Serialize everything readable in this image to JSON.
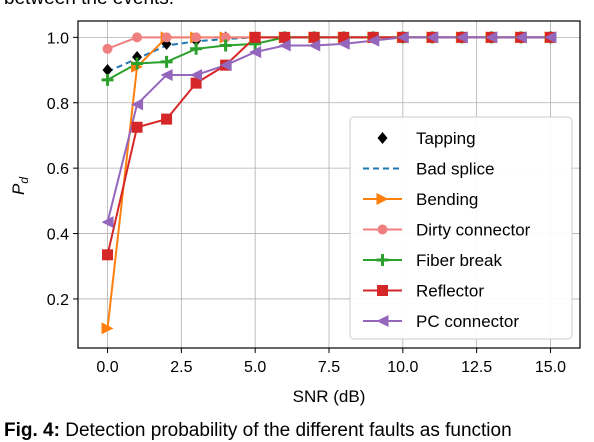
{
  "top_text": "between the events.",
  "caption": {
    "label": "Fig. 4:",
    "text": "Detection probability of the different faults as function"
  },
  "chart_data": {
    "type": "line",
    "xlabel": "SNR (dB)",
    "ylabel_main": "P",
    "ylabel_sub": "d",
    "xlim": [
      -1,
      16
    ],
    "ylim": [
      0.05,
      1.05
    ],
    "xticks": [
      0.0,
      2.5,
      5.0,
      7.5,
      10.0,
      12.5,
      15.0
    ],
    "xtick_labels": [
      "0.0",
      "2.5",
      "5.0",
      "7.5",
      "10.0",
      "12.5",
      "15.0"
    ],
    "yticks": [
      0.2,
      0.4,
      0.6,
      0.8,
      1.0
    ],
    "ytick_labels": [
      "0.2",
      "0.4",
      "0.6",
      "0.8",
      "1.0"
    ],
    "grid": true,
    "legend_position": "bottom-right",
    "x": [
      0,
      1,
      2,
      3,
      4,
      5,
      6,
      7,
      8,
      9,
      10,
      11,
      12,
      13,
      14,
      15
    ],
    "series": [
      {
        "name": "Tapping",
        "color": "#000000",
        "marker": "diamond",
        "linestyle": "none",
        "values": [
          0.9,
          0.94,
          0.98,
          0.99,
          1.0,
          1.0,
          1.0,
          1.0,
          1.0,
          1.0,
          1.0,
          1.0,
          1.0,
          1.0,
          1.0,
          1.0
        ]
      },
      {
        "name": "Bad splice",
        "color": "#1f77b4",
        "marker": "none",
        "linestyle": "dashed",
        "values": [
          0.895,
          0.935,
          0.975,
          0.988,
          0.995,
          1.0,
          1.0,
          1.0,
          1.0,
          1.0,
          1.0,
          1.0,
          1.0,
          1.0,
          1.0,
          1.0
        ]
      },
      {
        "name": "Bending",
        "color": "#ff7f0e",
        "marker": "triangle-right",
        "linestyle": "solid",
        "values": [
          0.11,
          0.91,
          1.0,
          1.0,
          1.0,
          1.0,
          1.0,
          1.0,
          1.0,
          1.0,
          1.0,
          1.0,
          1.0,
          1.0,
          1.0,
          1.0
        ]
      },
      {
        "name": "Dirty connector",
        "color": "#f08080",
        "marker": "circle",
        "linestyle": "solid",
        "values": [
          0.965,
          1.0,
          1.0,
          1.0,
          1.0,
          1.0,
          1.0,
          1.0,
          1.0,
          1.0,
          1.0,
          1.0,
          1.0,
          1.0,
          1.0,
          1.0
        ]
      },
      {
        "name": "Fiber break",
        "color": "#2ca02c",
        "marker": "plus",
        "linestyle": "solid",
        "values": [
          0.87,
          0.92,
          0.925,
          0.965,
          0.975,
          0.98,
          1.0,
          1.0,
          1.0,
          1.0,
          1.0,
          1.0,
          1.0,
          1.0,
          1.0,
          1.0
        ]
      },
      {
        "name": "Reflector",
        "color": "#d62728",
        "marker": "square",
        "linestyle": "solid",
        "values": [
          0.335,
          0.725,
          0.75,
          0.86,
          0.915,
          1.0,
          1.0,
          1.0,
          1.0,
          1.0,
          1.0,
          1.0,
          1.0,
          1.0,
          1.0,
          1.0
        ]
      },
      {
        "name": "PC connector",
        "color": "#9467bd",
        "marker": "triangle-left",
        "linestyle": "solid",
        "values": [
          0.435,
          0.795,
          0.885,
          0.885,
          0.915,
          0.955,
          0.975,
          0.975,
          0.98,
          0.99,
          1.0,
          1.0,
          1.0,
          1.0,
          1.0,
          1.0
        ]
      }
    ]
  }
}
